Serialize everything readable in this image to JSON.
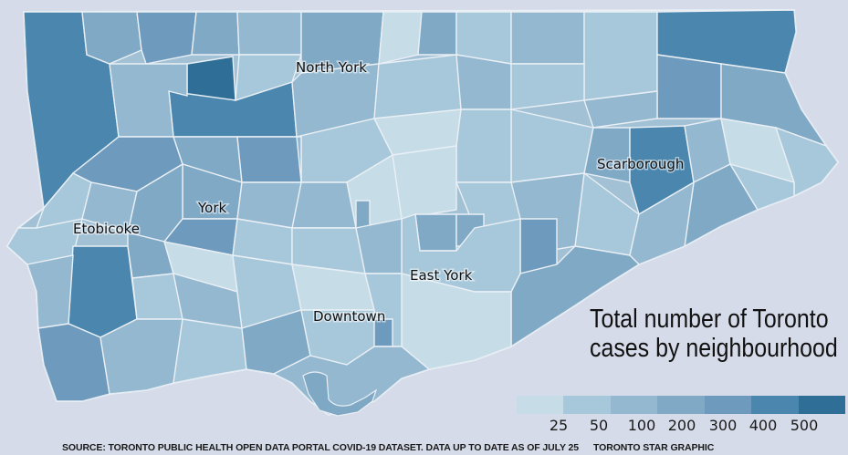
{
  "map": {
    "region_labels": [
      "North York",
      "Scarborough",
      "Etobicoke",
      "York",
      "East York",
      "Downtown"
    ]
  },
  "title_lines": [
    "Total number of Toronto",
    "cases by neighbourhood"
  ],
  "legend": {
    "ticks": [
      "25",
      "50",
      "100",
      "200",
      "300",
      "400",
      "500"
    ],
    "swatches": [
      "#c6dde8",
      "#a7c8da",
      "#93b8d0",
      "#80a9c6",
      "#6e9bbd",
      "#4a86ad",
      "#2f6e96"
    ]
  },
  "footer": {
    "source": "SOURCE: TORONTO PUBLIC HEALTH OPEN DATA PORTAL COVID-19 DATASET. DATA UP TO DATE AS OF JULY 25",
    "credit": "TORONTO STAR GRAPHIC"
  },
  "colors": {
    "background": "#d5dbe8",
    "borders": "#e9eff5"
  }
}
